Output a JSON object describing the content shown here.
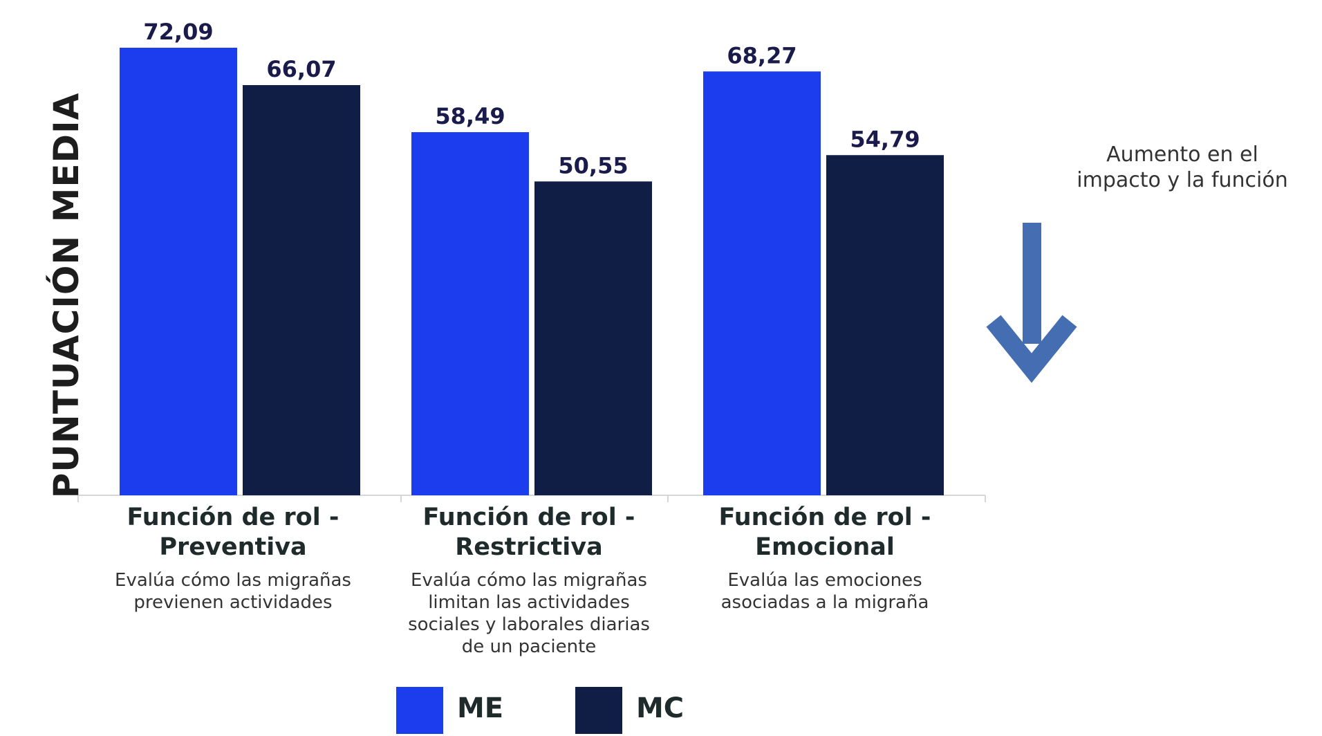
{
  "chart_data": {
    "type": "bar",
    "ylabel": "PUNTUACIÓN MEDIA",
    "categories": [
      {
        "title": [
          "Función de rol -",
          "Preventiva"
        ],
        "description": [
          "Evalúa cómo las migrañas",
          "previenen actividades"
        ]
      },
      {
        "title": [
          "Función de rol -",
          "Restrictiva"
        ],
        "description": [
          "Evalúa cómo las migrañas",
          "limitan las actividades",
          "sociales y laborales diarias",
          "de un paciente"
        ]
      },
      {
        "title": [
          "Función de rol -",
          "Emocional"
        ],
        "description": [
          "Evalúa las emociones",
          "asociadas a la migraña"
        ]
      }
    ],
    "series": [
      {
        "name": "ME",
        "color": "#1b3ded",
        "values": [
          72.09,
          58.49,
          68.27
        ],
        "labels": [
          "72,09",
          "58,49",
          "68,27"
        ]
      },
      {
        "name": "MC",
        "color": "#101d44",
        "values": [
          66.07,
          50.55,
          54.79
        ],
        "labels": [
          "66,07",
          "50,55",
          "54,79"
        ]
      }
    ],
    "ylim": [
      0,
      100
    ],
    "grid": false,
    "legend": "bottom-center",
    "label_color": "#1a1b4b",
    "annotation": {
      "lines": [
        "Aumento en el",
        "impacto y la función"
      ],
      "arrow": "down-arrow-icon",
      "arrow_color": "#456eb2"
    }
  }
}
